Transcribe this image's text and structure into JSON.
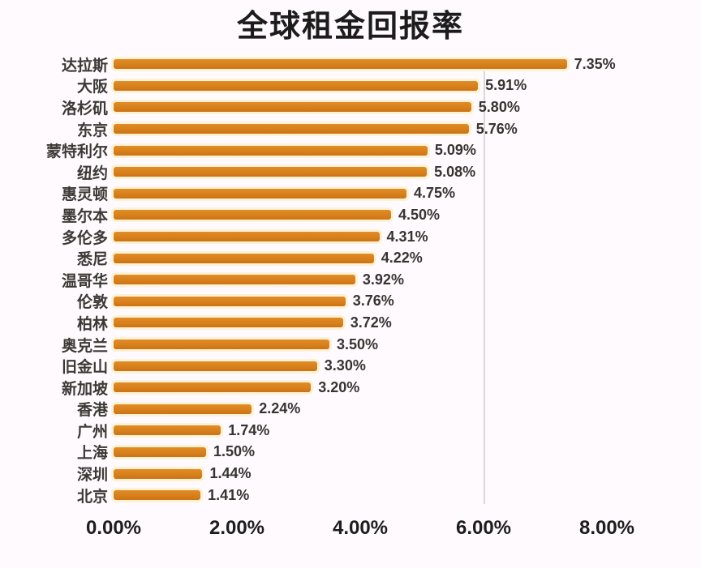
{
  "title": "全球租金回报率",
  "chart_data": {
    "type": "bar",
    "orientation": "horizontal",
    "title": "全球租金回报率",
    "categories": [
      "达拉斯",
      "大阪",
      "洛杉矶",
      "东京",
      "蒙特利尔",
      "纽约",
      "惠灵顿",
      "墨尔本",
      "多伦多",
      "悉尼",
      "温哥华",
      "伦敦",
      "柏林",
      "奥克兰",
      "旧金山",
      "新加坡",
      "香港",
      "广州",
      "上海",
      "深圳",
      "北京"
    ],
    "values": [
      7.35,
      5.91,
      5.8,
      5.76,
      5.09,
      5.08,
      4.75,
      4.5,
      4.31,
      4.22,
      3.92,
      3.76,
      3.72,
      3.5,
      3.3,
      3.2,
      2.24,
      1.74,
      1.5,
      1.44,
      1.41
    ],
    "value_labels": [
      "7.35%",
      "5.91%",
      "5.80%",
      "5.76%",
      "5.09%",
      "5.08%",
      "4.75%",
      "4.50%",
      "4.31%",
      "4.22%",
      "3.92%",
      "3.76%",
      "3.72%",
      "3.50%",
      "3.30%",
      "3.20%",
      "2.24%",
      "1.74%",
      "1.50%",
      "1.44%",
      "1.41%"
    ],
    "x_ticks": [
      "0.00%",
      "2.00%",
      "4.00%",
      "6.00%",
      "8.00%"
    ],
    "xlim": [
      0,
      8
    ],
    "grid": "single vertical line at 6%",
    "gridline_value": 6,
    "legend": "none",
    "bar_color": "#d9821e",
    "bar_glow_color": "#fdf2d6",
    "background_color": "#fefafd",
    "xlabel": "",
    "ylabel": ""
  }
}
